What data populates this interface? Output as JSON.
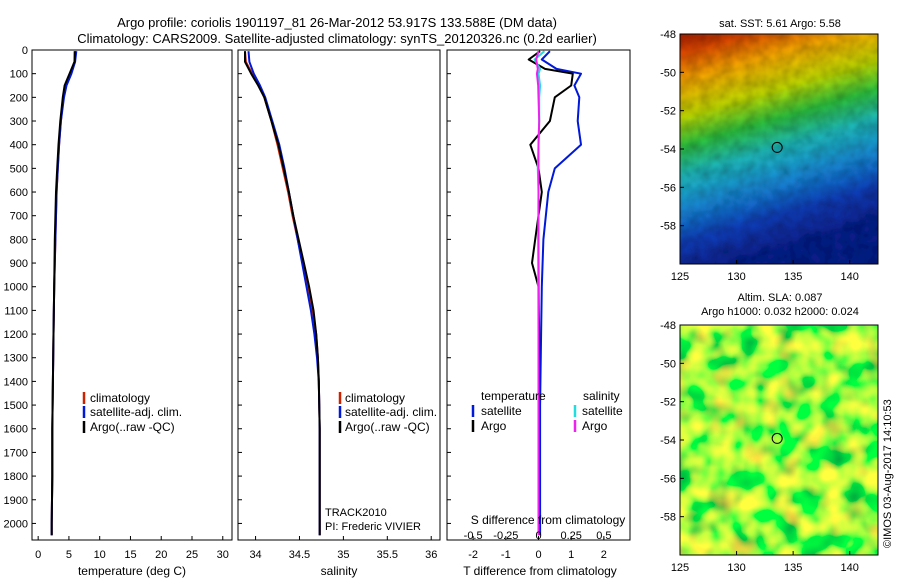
{
  "header": {
    "title_line1": "Argo profile: coriolis 1901197_81 26-Mar-2012 53.917S 133.588E (DM data)",
    "title_line2": "Climatology: CARS2009. Satellite-adjusted climatology: synTS_20120326.nc (0.2d earlier)"
  },
  "colors": {
    "climatology": "#cc2200",
    "satellite": "#0018d8",
    "argo": "#000000",
    "argo_salinity_diff": "#ee22ee",
    "satellite_salinity_diff": "#22dddd"
  },
  "chart_data": [
    {
      "type": "line",
      "name": "temperature-profile",
      "xlabel": "temperature (deg C)",
      "ylabel": "",
      "xlim": [
        -1,
        31.5
      ],
      "ylim": [
        2070,
        0
      ],
      "xticks": [
        0,
        5,
        10,
        15,
        20,
        25,
        30
      ],
      "yticks": [
        0,
        100,
        200,
        300,
        400,
        500,
        600,
        700,
        800,
        900,
        1000,
        1100,
        1200,
        1300,
        1400,
        1500,
        1600,
        1700,
        1800,
        1900,
        2000
      ],
      "legend": [
        "climatology",
        "satellite-adj. clim.",
        "Argo(..raw -QC)"
      ],
      "legend_position": "lower-middle",
      "series": [
        {
          "name": "climatology",
          "depth": [
            5,
            50,
            100,
            150,
            200,
            300,
            400,
            500,
            600,
            800,
            1000,
            1200,
            1400,
            1600,
            1800,
            2000,
            2050
          ],
          "values": [
            5.9,
            5.9,
            5.2,
            4.5,
            4.1,
            3.7,
            3.4,
            3.2,
            3.0,
            2.8,
            2.6,
            2.5,
            2.4,
            2.3,
            2.3,
            2.2,
            2.2
          ]
        },
        {
          "name": "satellite-adj. clim.",
          "depth": [
            5,
            50,
            100,
            150,
            200,
            300,
            400,
            500,
            600,
            800,
            1000,
            1200,
            1400,
            1600,
            1800,
            2000,
            2050
          ],
          "values": [
            6.2,
            6.0,
            5.4,
            4.6,
            4.2,
            3.7,
            3.4,
            3.2,
            3.0,
            2.8,
            2.6,
            2.5,
            2.4,
            2.3,
            2.3,
            2.2,
            2.2
          ]
        },
        {
          "name": "Argo(..raw -QC)",
          "depth": [
            5,
            50,
            100,
            150,
            200,
            300,
            400,
            500,
            600,
            800,
            1000,
            1200,
            1400,
            1600,
            1800,
            2000,
            2050
          ],
          "values": [
            6.0,
            5.9,
            5.1,
            4.3,
            4.0,
            3.6,
            3.3,
            3.1,
            2.9,
            2.7,
            2.6,
            2.5,
            2.4,
            2.3,
            2.3,
            2.2,
            2.2
          ]
        }
      ]
    },
    {
      "type": "line",
      "name": "salinity-profile",
      "xlabel": "salinity",
      "ylabel": "",
      "xlim": [
        33.8,
        36.1
      ],
      "ylim": [
        2070,
        0
      ],
      "xticks": [
        34,
        34.5,
        35,
        35.5,
        36
      ],
      "xtick_labels": [
        "34",
        "34.5",
        "35",
        "35.5",
        "36"
      ],
      "legend": [
        "climatology",
        "satellite-adj. clim.",
        "Argo(..raw -QC)"
      ],
      "legend_position": "lower-right",
      "annotations": [
        "TRACK2010",
        "PI: Frederic VIVIER"
      ],
      "series": [
        {
          "name": "climatology",
          "depth": [
            5,
            50,
            100,
            150,
            200,
            300,
            400,
            500,
            600,
            700,
            800,
            900,
            1000,
            1100,
            1200,
            1300,
            1400,
            1600,
            1800,
            2000,
            2050
          ],
          "values": [
            33.88,
            33.89,
            33.96,
            34.04,
            34.1,
            34.18,
            34.25,
            34.31,
            34.37,
            34.42,
            34.48,
            34.54,
            34.6,
            34.65,
            34.69,
            34.71,
            34.72,
            34.73,
            34.73,
            34.73,
            34.73
          ]
        },
        {
          "name": "satellite-adj. clim.",
          "depth": [
            5,
            50,
            100,
            150,
            200,
            300,
            400,
            500,
            600,
            700,
            800,
            900,
            1000,
            1100,
            1200,
            1300,
            1400,
            1600,
            1800,
            2000,
            2050
          ],
          "values": [
            33.92,
            33.93,
            33.98,
            34.05,
            34.11,
            34.19,
            34.27,
            34.33,
            34.38,
            34.43,
            34.48,
            34.53,
            34.58,
            34.63,
            34.67,
            34.7,
            34.72,
            34.73,
            34.73,
            34.73,
            34.73
          ]
        },
        {
          "name": "Argo(..raw -QC)",
          "depth": [
            5,
            50,
            100,
            150,
            200,
            300,
            400,
            500,
            600,
            700,
            800,
            900,
            1000,
            1100,
            1200,
            1300,
            1400,
            1600,
            1800,
            2000,
            2050
          ],
          "values": [
            33.88,
            33.88,
            33.95,
            34.03,
            34.1,
            34.18,
            34.26,
            34.32,
            34.38,
            34.43,
            34.49,
            34.55,
            34.61,
            34.66,
            34.69,
            34.71,
            34.72,
            34.73,
            34.73,
            34.73,
            34.73
          ]
        }
      ]
    },
    {
      "type": "line",
      "name": "difference-profile",
      "xlabel": "T difference from climatology",
      "xlabel_top": "S difference from climatology",
      "xlim": [
        -2.8,
        2.8
      ],
      "ylim": [
        2070,
        0
      ],
      "xticks": [
        -2,
        -1,
        0,
        1,
        2
      ],
      "sdiff_ticks": [
        "-0.5",
        "-0.25",
        "0",
        "0.25",
        "0.5"
      ],
      "sdiff_tick_t_positions": [
        -2,
        -1,
        0,
        1,
        2
      ],
      "legend": {
        "temperature_header": "temperature",
        "salinity_header": "salinity",
        "items": [
          "satellite",
          "Argo",
          "satellite",
          "Argo"
        ]
      },
      "legend_position": "lower-middle",
      "series": [
        {
          "name": "temperature satellite",
          "depth": [
            5,
            40,
            80,
            100,
            150,
            200,
            300,
            400,
            500,
            600,
            800,
            1000,
            1200,
            1500,
            2000,
            2050
          ],
          "values": [
            0.35,
            0.1,
            0.55,
            1.3,
            1.1,
            1.25,
            1.2,
            1.3,
            0.5,
            0.3,
            0.15,
            0.1,
            0.08,
            0.05,
            0.05,
            0.05
          ]
        },
        {
          "name": "temperature Argo",
          "depth": [
            5,
            40,
            80,
            100,
            150,
            200,
            300,
            400,
            500,
            600,
            800,
            900,
            1000,
            1200,
            1500,
            2000,
            2050
          ],
          "values": [
            0.05,
            -0.3,
            0.2,
            1.05,
            1.0,
            0.5,
            0.35,
            -0.25,
            0.0,
            0.1,
            -0.1,
            -0.2,
            0.0,
            0.02,
            0.0,
            0.0,
            0.0
          ]
        },
        {
          "name": "salinity satellite",
          "depth": [
            5,
            40,
            80,
            100,
            150,
            200,
            300,
            400,
            500,
            600,
            800,
            1000,
            1200,
            1500,
            2000,
            2050
          ],
          "values": [
            0.18,
            -0.12,
            0.05,
            0.0,
            0.05,
            0.02,
            0.02,
            0.0,
            -0.02,
            0.0,
            -0.01,
            -0.01,
            0.0,
            0.0,
            0.0,
            0.0
          ]
        },
        {
          "name": "salinity Argo",
          "depth": [
            5,
            40,
            80,
            100,
            150,
            200,
            300,
            400,
            500,
            600,
            800,
            1000,
            1200,
            1500,
            2000,
            2050
          ],
          "values": [
            0.0,
            -0.07,
            -0.02,
            -0.05,
            -0.01,
            0.0,
            0.02,
            0.0,
            0.0,
            0.0,
            0.0,
            0.01,
            0.0,
            0.0,
            0.0,
            0.0
          ]
        }
      ]
    },
    {
      "type": "heatmap",
      "name": "sst-map",
      "title": "sat. SST: 5.61 Argo: 5.58",
      "xlim": [
        125,
        142.5
      ],
      "ylim": [
        -60,
        -48
      ],
      "xticks": [
        125,
        130,
        135,
        140
      ],
      "yticks": [
        -48,
        -50,
        -52,
        -54,
        -56,
        -58
      ],
      "marker": {
        "lon": 133.588,
        "lat": -53.917
      }
    },
    {
      "type": "heatmap",
      "name": "sla-map",
      "title_line1": "Altim. SLA: 0.087",
      "title_line2": "Argo h1000: 0.032 h2000: 0.024",
      "xlim": [
        125,
        142.5
      ],
      "ylim": [
        -60,
        -48
      ],
      "xticks": [
        125,
        130,
        135,
        140
      ],
      "yticks": [
        -48,
        -50,
        -52,
        -54,
        -56,
        -58
      ],
      "marker": {
        "lon": 133.588,
        "lat": -53.917
      }
    }
  ],
  "footer": {
    "stamp": "©IMOS 03-Aug-2017 14:10:53"
  }
}
